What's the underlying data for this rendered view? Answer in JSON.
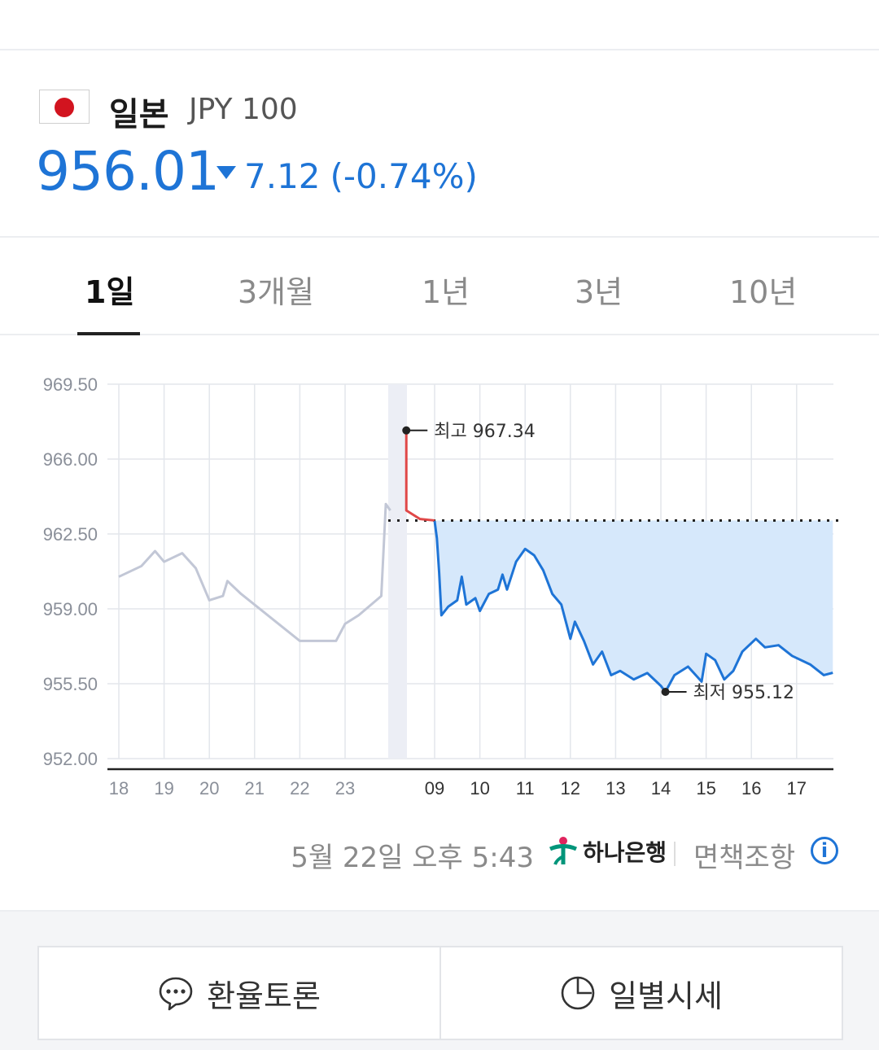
{
  "header": {
    "country": "일본",
    "code": "JPY 100",
    "price": "956.01",
    "change_amount": "7.12",
    "change_percent": "(-0.74%)",
    "direction": "down",
    "color_down": "#1e74d6"
  },
  "tabs": [
    {
      "label": "1일",
      "active": true
    },
    {
      "label": "3개월",
      "active": false
    },
    {
      "label": "1년",
      "active": false
    },
    {
      "label": "3년",
      "active": false
    },
    {
      "label": "10년",
      "active": false
    }
  ],
  "chart_data": {
    "type": "line",
    "y_ticks": [
      "969.50",
      "966.00",
      "962.50",
      "959.00",
      "955.50",
      "952.00"
    ],
    "ylim": [
      952.0,
      969.5
    ],
    "x_ticks": [
      "18",
      "19",
      "20",
      "21",
      "22",
      "23",
      "moon-icon",
      "09",
      "10",
      "11",
      "12",
      "13",
      "14",
      "15",
      "16",
      "17"
    ],
    "reference_value": 963.13,
    "high": {
      "label": "최고 967.34",
      "value": 967.34
    },
    "low": {
      "label": "최저 955.12",
      "value": 955.12
    },
    "series": [
      {
        "segment": "overnight",
        "color": "#c2c7d6",
        "points": [
          [
            "18",
            960.5
          ],
          [
            "18.5",
            961.0
          ],
          [
            "18.8",
            961.7
          ],
          [
            "19.0",
            961.2
          ],
          [
            "19.4",
            961.6
          ],
          [
            "19.7",
            960.9
          ],
          [
            "20.0",
            959.4
          ],
          [
            "20.3",
            959.6
          ],
          [
            "20.4",
            960.3
          ],
          [
            "20.7",
            959.7
          ],
          [
            "22.0",
            957.5
          ],
          [
            "22.8",
            957.5
          ],
          [
            "23.0",
            958.3
          ],
          [
            "23.3",
            958.7
          ],
          [
            "23.8",
            959.6
          ],
          [
            "23.9",
            963.9
          ],
          [
            "24.0",
            963.6
          ]
        ]
      },
      {
        "segment": "pre-open-high",
        "color": "#e04848",
        "points": [
          [
            "08.4",
            967.34
          ],
          [
            "08.4",
            963.6
          ],
          [
            "08.7",
            963.2
          ],
          [
            "09",
            963.13
          ]
        ]
      },
      {
        "segment": "day",
        "color": "#1e74d6",
        "points": [
          [
            "09.0",
            963.1
          ],
          [
            "09.05",
            962.3
          ],
          [
            "09.1",
            960.7
          ],
          [
            "09.15",
            958.7
          ],
          [
            "09.3",
            959.1
          ],
          [
            "09.5",
            959.4
          ],
          [
            "09.6",
            960.5
          ],
          [
            "09.7",
            959.2
          ],
          [
            "09.9",
            959.5
          ],
          [
            "10.0",
            958.9
          ],
          [
            "10.2",
            959.7
          ],
          [
            "10.4",
            959.9
          ],
          [
            "10.5",
            960.6
          ],
          [
            "10.6",
            959.9
          ],
          [
            "10.8",
            961.2
          ],
          [
            "11.0",
            961.8
          ],
          [
            "11.2",
            961.5
          ],
          [
            "11.4",
            960.8
          ],
          [
            "11.6",
            959.7
          ],
          [
            "11.8",
            959.2
          ],
          [
            "12.0",
            957.6
          ],
          [
            "12.1",
            958.4
          ],
          [
            "12.3",
            957.5
          ],
          [
            "12.5",
            956.4
          ],
          [
            "12.7",
            957.0
          ],
          [
            "12.9",
            955.9
          ],
          [
            "13.1",
            956.1
          ],
          [
            "13.4",
            955.7
          ],
          [
            "13.7",
            956.0
          ],
          [
            "14.0",
            955.4
          ],
          [
            "14.1",
            955.12
          ],
          [
            "14.3",
            955.9
          ],
          [
            "14.6",
            956.3
          ],
          [
            "14.9",
            955.6
          ],
          [
            "15.0",
            956.9
          ],
          [
            "15.2",
            956.6
          ],
          [
            "15.4",
            955.7
          ],
          [
            "15.6",
            956.1
          ],
          [
            "15.8",
            957.0
          ],
          [
            "16.1",
            957.6
          ],
          [
            "16.3",
            957.2
          ],
          [
            "16.6",
            957.3
          ],
          [
            "16.9",
            956.8
          ],
          [
            "17.3",
            956.4
          ],
          [
            "17.6",
            955.9
          ],
          [
            "17.8",
            956.01
          ]
        ]
      }
    ]
  },
  "footer": {
    "timestamp": "5월 22일 오후 5:43",
    "bank_name": "하나은행",
    "disclaimer": "면책조항",
    "info_icon": "info-icon"
  },
  "buttons": {
    "discussion": "환율토론",
    "discussion_icon": "chat-bubble-icon",
    "daily": "일별시세",
    "daily_icon": "clock-icon"
  }
}
